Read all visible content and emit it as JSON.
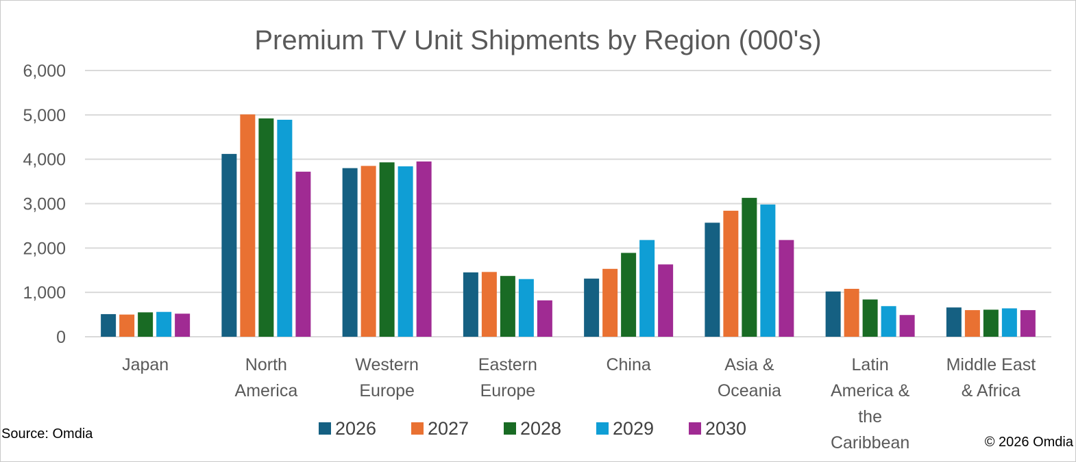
{
  "chart_data": {
    "type": "bar",
    "title": "Premium TV Unit Shipments by Region (000's)",
    "categories": [
      [
        "Japan"
      ],
      [
        "North",
        "America"
      ],
      [
        "Western",
        "Europe"
      ],
      [
        "Eastern",
        "Europe"
      ],
      [
        "China"
      ],
      [
        "Asia &",
        "Oceania"
      ],
      [
        "Latin",
        "America &",
        "the",
        "Caribbean"
      ],
      [
        "Middle East",
        "& Africa"
      ]
    ],
    "series": [
      {
        "name": "2026",
        "color": "#156082",
        "values": [
          510,
          4120,
          3800,
          1450,
          1310,
          2570,
          1020,
          660
        ]
      },
      {
        "name": "2027",
        "color": "#E97132",
        "values": [
          500,
          5010,
          3850,
          1460,
          1530,
          2840,
          1080,
          600
        ]
      },
      {
        "name": "2028",
        "color": "#196B24",
        "values": [
          550,
          4920,
          3930,
          1370,
          1890,
          3130,
          840,
          610
        ]
      },
      {
        "name": "2029",
        "color": "#0F9ED5",
        "values": [
          560,
          4890,
          3840,
          1300,
          2180,
          2980,
          690,
          640
        ]
      },
      {
        "name": "2030",
        "color": "#A02B93",
        "values": [
          520,
          3720,
          3950,
          820,
          1630,
          2180,
          490,
          600
        ]
      }
    ],
    "yticks": [
      "0",
      "1,000",
      "2,000",
      "3,000",
      "4,000",
      "5,000",
      "6,000"
    ],
    "ylim": [
      0,
      6000
    ],
    "grid": true,
    "legend": "bottom"
  },
  "footer": {
    "source": "Source: Omdia",
    "copyright": "© 2026 Omdia"
  }
}
